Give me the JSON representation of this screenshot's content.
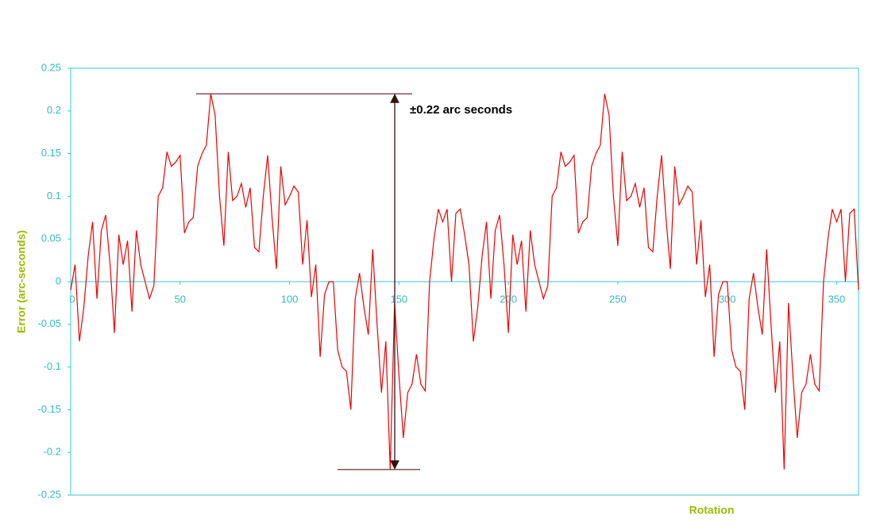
{
  "chart_data": {
    "type": "line",
    "x_label": "Rotation",
    "y_label": "Error (arc-seconds)",
    "xlim": [
      0,
      360
    ],
    "xticks": [
      0,
      50,
      100,
      150,
      200,
      250,
      300,
      350
    ],
    "ylim": [
      -0.25,
      0.25
    ],
    "yticks": [
      0.25,
      0.2,
      0.15,
      0.1,
      0.05,
      0,
      -0.05,
      -0.1,
      -0.15,
      -0.2,
      -0.25
    ],
    "grid": false,
    "axis_color": "#33cccc",
    "annotation": {
      "text": "±0.22 arc seconds",
      "upper": 0.22,
      "lower": -0.22,
      "color": "#663333"
    },
    "x": [
      0,
      2,
      4,
      6,
      8,
      10,
      12,
      14,
      16,
      18,
      20,
      22,
      24,
      26,
      28,
      30,
      32,
      34,
      36,
      38,
      40,
      42,
      44,
      46,
      48,
      50,
      52,
      54,
      56,
      58,
      60,
      62,
      64,
      66,
      68,
      70,
      72,
      74,
      76,
      78,
      80,
      82,
      84,
      86,
      88,
      90,
      92,
      94,
      96,
      98,
      100,
      102,
      104,
      106,
      108,
      110,
      112,
      114,
      116,
      118,
      120,
      122,
      124,
      126,
      128,
      130,
      132,
      134,
      136,
      138,
      140,
      142,
      144,
      146,
      148,
      150,
      152,
      154,
      156,
      158,
      160,
      162,
      164,
      166,
      168,
      170,
      172,
      174,
      176,
      178,
      180,
      182,
      184,
      186,
      188,
      190,
      192,
      194,
      196,
      198,
      200,
      202,
      204,
      206,
      208,
      210,
      212,
      214,
      216,
      218,
      220,
      222,
      224,
      226,
      228,
      230,
      232,
      234,
      236,
      238,
      240,
      242,
      244,
      246,
      248,
      250,
      252,
      254,
      256,
      258,
      260,
      262,
      264,
      266,
      268,
      270,
      272,
      274,
      276,
      278,
      280,
      282,
      284,
      286,
      288,
      290,
      292,
      294,
      296,
      298,
      300,
      302,
      304,
      306,
      308,
      310,
      312,
      314,
      316,
      318,
      320,
      322,
      324,
      326,
      328,
      330,
      332,
      334,
      336,
      338,
      340,
      342,
      344,
      346,
      348,
      350,
      352,
      354,
      356,
      358,
      360
    ],
    "series": [
      {
        "name": "Error",
        "color": "#ee0000",
        "values": [
          -0.01,
          0.02,
          -0.07,
          -0.03,
          0.03,
          0.07,
          -0.02,
          0.06,
          0.078,
          0.02,
          -0.06,
          0.055,
          0.02,
          0.048,
          -0.035,
          0.06,
          0.02,
          0,
          -0.02,
          -0.005,
          0.1,
          0.11,
          0.152,
          0.135,
          0.14,
          0.148,
          0.057,
          0.07,
          0.075,
          0.135,
          0.15,
          0.16,
          0.22,
          0.195,
          0.1,
          0.042,
          0.152,
          0.095,
          0.1,
          0.115,
          0.087,
          0.11,
          0.04,
          0.035,
          0.1,
          0.148,
          0.075,
          0.015,
          0.135,
          0.09,
          0.1,
          0.112,
          0.105,
          0.02,
          0.072,
          -0.018,
          0.02,
          -0.088,
          -0.015,
          0,
          0,
          -0.08,
          -0.1,
          -0.105,
          -0.15,
          -0.02,
          0.01,
          -0.03,
          -0.062,
          0.038,
          -0.05,
          -0.13,
          -0.07,
          -0.22,
          -0.025,
          -0.11,
          -0.183,
          -0.13,
          -0.12,
          -0.085,
          -0.12,
          -0.128,
          0,
          0.05,
          0.085,
          0.07,
          0.085,
          0,
          0.08,
          0.085,
          0.055,
          0.02,
          -0.07,
          -0.03,
          0.03,
          0.07,
          -0.02,
          0.06,
          0.078,
          0.02,
          -0.06,
          0.055,
          0.02,
          0.048,
          -0.035,
          0.06,
          0.02,
          0,
          -0.02,
          -0.005,
          0.1,
          0.11,
          0.152,
          0.135,
          0.14,
          0.148,
          0.057,
          0.07,
          0.075,
          0.135,
          0.15,
          0.16,
          0.22,
          0.195,
          0.1,
          0.042,
          0.152,
          0.095,
          0.1,
          0.115,
          0.087,
          0.11,
          0.04,
          0.035,
          0.1,
          0.148,
          0.075,
          0.015,
          0.135,
          0.09,
          0.1,
          0.112,
          0.105,
          0.02,
          0.072,
          -0.018,
          0.02,
          -0.088,
          -0.015,
          0,
          0,
          -0.08,
          -0.1,
          -0.105,
          -0.15,
          -0.02,
          0.01,
          -0.03,
          -0.062,
          0.038,
          -0.05,
          -0.13,
          -0.07,
          -0.22,
          -0.025,
          -0.11,
          -0.183,
          -0.13,
          -0.12,
          -0.085,
          -0.12,
          -0.128,
          0,
          0.05,
          0.085,
          0.07,
          0.085,
          0,
          0.08,
          0.085,
          -0.01
        ]
      }
    ]
  }
}
